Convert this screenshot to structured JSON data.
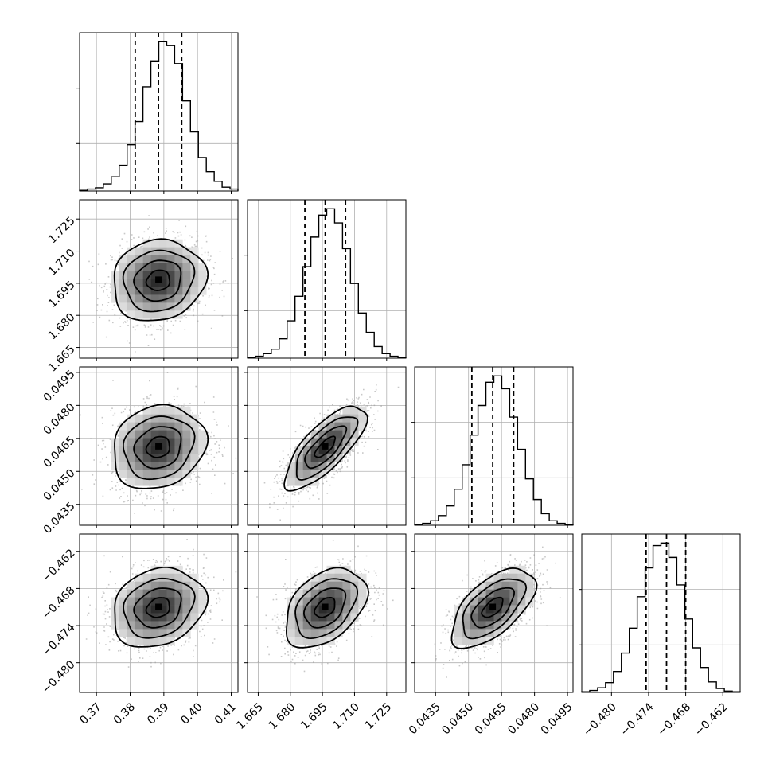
{
  "chart_data": {
    "type": "corner",
    "grid": true,
    "parameters": [
      {
        "range": [
          0.365,
          0.412
        ],
        "ticks": [
          0.37,
          0.38,
          0.39,
          0.4,
          0.41
        ],
        "tick_labels": [
          "0.37",
          "0.38",
          "0.39",
          "0.40",
          "0.41"
        ],
        "quantiles": [
          0.3815,
          0.3884,
          0.3953
        ],
        "hist_counts": [
          1,
          3,
          5,
          11,
          22,
          40,
          72,
          108,
          162,
          201,
          232,
          226,
          198,
          140,
          92,
          52,
          30,
          15,
          6,
          3
        ]
      },
      {
        "range": [
          1.66,
          1.734
        ],
        "ticks": [
          1.665,
          1.68,
          1.695,
          1.71,
          1.725
        ],
        "tick_labels": [
          "1.665",
          "1.680",
          "1.695",
          "1.710",
          "1.725"
        ],
        "quantiles": [
          1.6868,
          1.6963,
          1.7058
        ],
        "hist_counts": [
          1,
          3,
          7,
          14,
          30,
          58,
          96,
          142,
          188,
          222,
          232,
          210,
          170,
          116,
          70,
          40,
          18,
          7,
          3,
          1
        ]
      },
      {
        "range": [
          0.04255,
          0.04975
        ],
        "ticks": [
          0.0435,
          0.045,
          0.0465,
          0.048,
          0.0495
        ],
        "tick_labels": [
          "0.0435",
          "0.0450",
          "0.0465",
          "0.0480",
          "0.0495"
        ],
        "quantiles": [
          0.04515,
          0.0461,
          0.04705
        ],
        "hist_counts": [
          1,
          3,
          7,
          15,
          30,
          56,
          94,
          140,
          186,
          222,
          232,
          212,
          168,
          118,
          72,
          40,
          18,
          7,
          3,
          1
        ]
      },
      {
        "range": [
          -0.4848,
          -0.4592
        ],
        "ticks": [
          -0.48,
          -0.474,
          -0.468,
          -0.462
        ],
        "tick_labels": [
          "−0.480",
          "−0.474",
          "−0.468",
          "−0.462"
        ],
        "quantiles": [
          -0.4744,
          -0.4711,
          -0.468
        ],
        "hist_counts": [
          1,
          3,
          7,
          15,
          32,
          60,
          98,
          146,
          190,
          224,
          228,
          206,
          164,
          112,
          68,
          38,
          16,
          6,
          2,
          1
        ]
      }
    ],
    "pairs": [
      {
        "row": 1,
        "col": 0,
        "correlation": 0.1
      },
      {
        "row": 2,
        "col": 0,
        "correlation": 0.15
      },
      {
        "row": 2,
        "col": 1,
        "correlation": 0.75
      },
      {
        "row": 3,
        "col": 0,
        "correlation": 0.2
      },
      {
        "row": 3,
        "col": 1,
        "correlation": 0.4
      },
      {
        "row": 3,
        "col": 2,
        "correlation": 0.6
      }
    ]
  }
}
